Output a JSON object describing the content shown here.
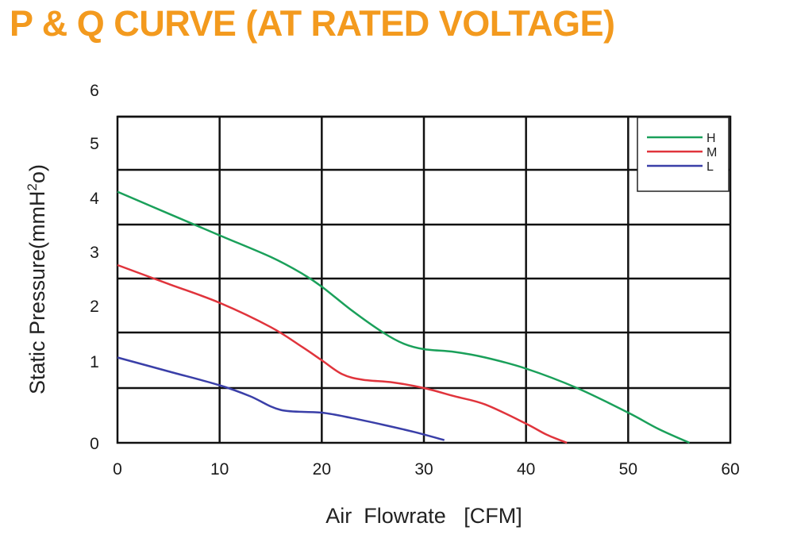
{
  "title": "P & Q CURVE (AT RATED VOLTAGE)",
  "colors": {
    "title": "#F39A1E",
    "H": "#1AA05A",
    "M": "#E0343C",
    "L": "#3A3FA8"
  },
  "chart_data": {
    "type": "line",
    "title": "P & Q CURVE (AT RATED VOLTAGE)",
    "xlabel": "Air  Flowrate   [CFM]",
    "ylabel": "Static Pressure(mmH2o)",
    "xlim": [
      0,
      60
    ],
    "ylim": [
      0,
      6
    ],
    "x_ticks": [
      "0",
      "10",
      "20",
      "30",
      "40",
      "50",
      "60"
    ],
    "y_ticks": [
      "0",
      "1",
      "2",
      "3",
      "4",
      "5",
      "6"
    ],
    "grid": true,
    "legend_position": "top-right",
    "series": [
      {
        "name": "H",
        "color": "#1AA05A",
        "points": [
          [
            0,
            4.6
          ],
          [
            5,
            4.2
          ],
          [
            10,
            3.8
          ],
          [
            15,
            3.4
          ],
          [
            18,
            3.1
          ],
          [
            20,
            2.85
          ],
          [
            23,
            2.4
          ],
          [
            26,
            2.0
          ],
          [
            28,
            1.8
          ],
          [
            30,
            1.7
          ],
          [
            33,
            1.65
          ],
          [
            36,
            1.55
          ],
          [
            40,
            1.35
          ],
          [
            45,
            1.0
          ],
          [
            50,
            0.55
          ],
          [
            53,
            0.25
          ],
          [
            56,
            0
          ]
        ]
      },
      {
        "name": "M",
        "color": "#E0343C",
        "points": [
          [
            0,
            3.25
          ],
          [
            5,
            2.9
          ],
          [
            10,
            2.55
          ],
          [
            15,
            2.1
          ],
          [
            18,
            1.75
          ],
          [
            20,
            1.5
          ],
          [
            22,
            1.25
          ],
          [
            24,
            1.15
          ],
          [
            27,
            1.1
          ],
          [
            30,
            1.0
          ],
          [
            33,
            0.85
          ],
          [
            36,
            0.7
          ],
          [
            40,
            0.35
          ],
          [
            42,
            0.15
          ],
          [
            44,
            0
          ]
        ]
      },
      {
        "name": "L",
        "color": "#3A3FA8",
        "points": [
          [
            0,
            1.55
          ],
          [
            5,
            1.3
          ],
          [
            10,
            1.05
          ],
          [
            13,
            0.85
          ],
          [
            16,
            0.6
          ],
          [
            20,
            0.55
          ],
          [
            23,
            0.45
          ],
          [
            26,
            0.33
          ],
          [
            29,
            0.2
          ],
          [
            32,
            0.05
          ]
        ]
      }
    ]
  }
}
